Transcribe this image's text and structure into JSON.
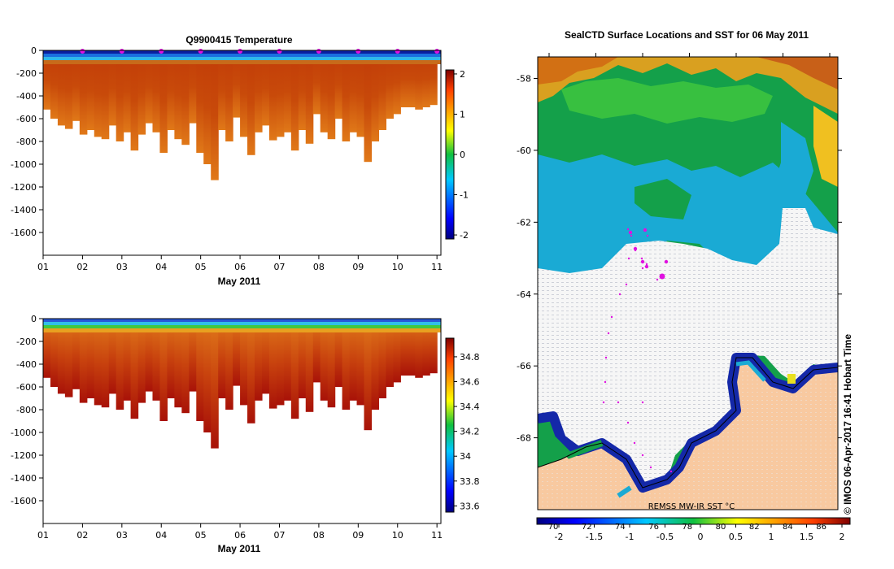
{
  "chart_data": [
    {
      "type": "heatmap",
      "title": "Q9900415  Temperature",
      "xlabel": "May 2011",
      "ylabel": "",
      "x_ticks": [
        "01",
        "02",
        "03",
        "04",
        "05",
        "06",
        "07",
        "08",
        "09",
        "10",
        "11"
      ],
      "y_ticks": [
        "0",
        "-200",
        "-400",
        "-600",
        "-800",
        "-1000",
        "-1200",
        "-1400",
        "-1600"
      ],
      "xlim": [
        1,
        11.1
      ],
      "ylim": [
        -1800,
        0
      ],
      "colorbar": {
        "ticks": [
          "-2",
          "-1",
          "0",
          "1",
          "2"
        ],
        "range": [
          -2.1,
          2.1
        ]
      },
      "profile_depths": [
        -520,
        -600,
        -660,
        -690,
        -620,
        -740,
        -700,
        -760,
        -780,
        -660,
        -800,
        -720,
        -880,
        -740,
        -640,
        -720,
        -900,
        -700,
        -780,
        -830,
        -640,
        -900,
        -1000,
        -1140,
        -700,
        -800,
        -590,
        -760,
        -920,
        -720,
        -660,
        -790,
        -760,
        -720,
        -880,
        -700,
        -820,
        -560,
        -720,
        -780,
        -600,
        -800,
        -720,
        -760,
        -980,
        -800,
        -700,
        -600,
        -560,
        -500,
        -500,
        -520,
        -500,
        -480
      ],
      "profile_markers_at_day": [
        2,
        3,
        4,
        5,
        6,
        7,
        8,
        9,
        10,
        11
      ]
    },
    {
      "type": "heatmap",
      "title": "",
      "xlabel": "May 2011",
      "ylabel": "",
      "x_ticks": [
        "01",
        "02",
        "03",
        "04",
        "05",
        "06",
        "07",
        "08",
        "09",
        "10",
        "11"
      ],
      "y_ticks": [
        "0",
        "-200",
        "-400",
        "-600",
        "-800",
        "-1000",
        "-1200",
        "-1400",
        "-1600"
      ],
      "xlim": [
        1,
        11.1
      ],
      "ylim": [
        -1800,
        0
      ],
      "colorbar": {
        "ticks": [
          "34.8",
          "34.6",
          "34.4",
          "34.2",
          "34",
          "33.8",
          "33.6"
        ],
        "range": [
          33.55,
          34.95
        ]
      }
    },
    {
      "type": "heatmap",
      "title": "SealCTD Surface Locations and SST for 06 May 2011",
      "xlabel": "",
      "ylabel": "",
      "y_ticks": [
        "-58",
        "-60",
        "-62",
        "-64",
        "-66",
        "-68"
      ],
      "ylim": [
        -70.0,
        -57.4
      ],
      "colorbar_upper_ticks": [
        "70",
        "72",
        "74",
        "76",
        "78",
        "80",
        "82",
        "84",
        "86"
      ],
      "colorbar_lower_ticks": [
        "-2",
        "-1.5",
        "-1",
        "-0.5",
        "0",
        "0.5",
        "1",
        "1.5",
        "2"
      ],
      "source_label": "REMSS MW-IR SST °C",
      "side_label": "© IMOS 06-Apr-2017 16:41 Hobart Time"
    }
  ],
  "colors": {
    "ice": "#f6f6f6",
    "land": "#f8c9a0",
    "marker": "#e010e0"
  }
}
